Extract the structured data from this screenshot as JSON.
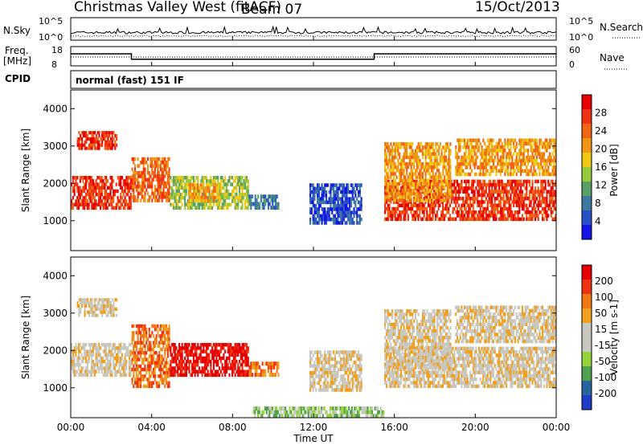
{
  "header": {
    "title": "Christmas Valley West (fitACF)",
    "beam": "Beam 07",
    "date": "15/Oct/2013",
    "cpid_label": "CPID",
    "cpid_value": "normal (fast) 151 IF"
  },
  "colors": {
    "power_scale": [
      "#1414e6",
      "#2850c8",
      "#3c78a0",
      "#5aa064",
      "#96c83c",
      "#f0c814",
      "#f09614",
      "#f06414",
      "#f03214",
      "#e60000"
    ],
    "velocity_scale": [
      "#e60000",
      "#f03214",
      "#f07814",
      "#f0a01e",
      "#c8c8c0",
      "#c8c8c0",
      "#96d23c",
      "#50a050",
      "#2864a0",
      "#1e3cc8"
    ]
  },
  "chart_data": [
    {
      "type": "line",
      "name": "N.Sky / N.Search",
      "left_label": "N.Sky",
      "right_label": "N.Search",
      "left_ticks": [
        "10^5",
        "10^0"
      ],
      "right_ticks": [
        "10^5",
        "10^0"
      ]
    },
    {
      "type": "line",
      "name": "Freq / Nave",
      "left_label_1": "Freq.",
      "left_label_2": "[MHz]",
      "right_label": "Nave",
      "left_ticks": [
        "18",
        "8"
      ],
      "right_ticks": [
        "60",
        "0"
      ],
      "freq_mhz": [
        {
          "t": 0.0,
          "v": 14.5
        },
        {
          "t": 3.0,
          "v": 14.5
        },
        {
          "t": 3.0,
          "v": 10.5
        },
        {
          "t": 15.0,
          "v": 10.5
        },
        {
          "t": 15.0,
          "v": 14.5
        },
        {
          "t": 24.0,
          "v": 14.5
        }
      ]
    },
    {
      "type": "heatmap",
      "name": "Power",
      "ylabel": "Slant Range [km]",
      "ylim": [
        200,
        4500
      ],
      "yticks": [
        1000,
        2000,
        3000,
        4000
      ],
      "colorbar_label": "Power [dB]",
      "colorbar_ticks": [
        "4",
        "8",
        "12",
        "16",
        "20",
        "24",
        "28"
      ],
      "regions": [
        {
          "t0": 0.0,
          "t1": 3.0,
          "r0": 1300,
          "r1": 2200,
          "level": 8
        },
        {
          "t0": 0.3,
          "t1": 2.3,
          "r0": 2900,
          "r1": 3400,
          "level": 8
        },
        {
          "t0": 3.0,
          "t1": 4.9,
          "r0": 1500,
          "r1": 2700,
          "level": 7
        },
        {
          "t0": 4.9,
          "t1": 8.8,
          "r0": 1300,
          "r1": 2200,
          "level": 4
        },
        {
          "t0": 5.8,
          "t1": 7.4,
          "r0": 1500,
          "r1": 2000,
          "level": 6
        },
        {
          "t0": 8.8,
          "t1": 10.3,
          "r0": 1300,
          "r1": 1700,
          "level": 2
        },
        {
          "t0": 11.8,
          "t1": 14.4,
          "r0": 900,
          "r1": 2000,
          "level": 1
        },
        {
          "t0": 15.5,
          "t1": 24.0,
          "r0": 1000,
          "r1": 2100,
          "level": 8
        },
        {
          "t0": 15.5,
          "t1": 18.8,
          "r0": 1500,
          "r1": 3100,
          "level": 6
        },
        {
          "t0": 19.0,
          "t1": 24.0,
          "r0": 2200,
          "r1": 3200,
          "level": 6
        }
      ]
    },
    {
      "type": "heatmap",
      "name": "Velocity",
      "ylabel": "Slant Range [km]",
      "xlabel": "Time UT",
      "ylim": [
        200,
        4500
      ],
      "yticks": [
        1000,
        2000,
        3000,
        4000
      ],
      "xticks": [
        "00:00",
        "04:00",
        "08:00",
        "12:00",
        "16:00",
        "20:00",
        "00:00"
      ],
      "colorbar_label": "Velocity [m s-1]",
      "colorbar_ticks": [
        "200",
        "100",
        "50",
        "15",
        "-15",
        "-50",
        "-100",
        "-200"
      ],
      "regions": [
        {
          "t0": 0.0,
          "t1": 3.0,
          "r0": 1300,
          "r1": 2200,
          "level": 4
        },
        {
          "t0": 0.3,
          "t1": 2.3,
          "r0": 2900,
          "r1": 3400,
          "level": 4
        },
        {
          "t0": 3.0,
          "t1": 4.9,
          "r0": 1000,
          "r1": 2700,
          "level": 2
        },
        {
          "t0": 4.9,
          "t1": 8.8,
          "r0": 1300,
          "r1": 2200,
          "level": 0
        },
        {
          "t0": 8.8,
          "t1": 10.3,
          "r0": 1300,
          "r1": 1700,
          "level": 2
        },
        {
          "t0": 11.8,
          "t1": 14.4,
          "r0": 900,
          "r1": 2000,
          "level": 4
        },
        {
          "t0": 15.5,
          "t1": 24.0,
          "r0": 1000,
          "r1": 2100,
          "level": 4
        },
        {
          "t0": 15.5,
          "t1": 18.8,
          "r0": 1500,
          "r1": 3100,
          "level": 4
        },
        {
          "t0": 19.0,
          "t1": 24.0,
          "r0": 2200,
          "r1": 3200,
          "level": 4
        },
        {
          "t0": 9.0,
          "t1": 15.5,
          "r0": 200,
          "r1": 500,
          "level": 6
        }
      ]
    }
  ]
}
